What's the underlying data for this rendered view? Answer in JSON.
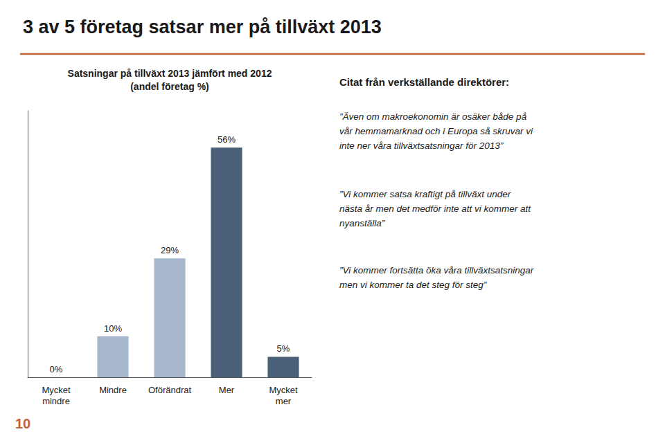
{
  "chart_data": {
    "type": "bar",
    "title": "3 av 5 företag satsar mer på tillväxt 2013",
    "subtitle": "Satsningar på tillväxt 2013 jämfört med 2012\n(andel företag %)",
    "categories": [
      "Mycket\nmindre",
      "Mindre",
      "Oförändrat",
      "Mer",
      "Mycket\nmer"
    ],
    "values": [
      0,
      10,
      29,
      56,
      5
    ],
    "value_labels": [
      "0%",
      "10%",
      "29%",
      "56%",
      "5%"
    ],
    "colors": [
      "#a8b8cc",
      "#a8b8cc",
      "#a8b8cc",
      "#4a5f78",
      "#4a5f78"
    ],
    "ylim": [
      0,
      65
    ],
    "grid": false,
    "data_labels": true,
    "tick_labels": "x",
    "annotations": [
      "Citat från verkställande direktörer:",
      "”Även om makroekonomin är osäker både på\nvår hemmamarknad och i Europa så skruvar vi\ninte ner våra tillväxtsatsningar för 2013”",
      "”Vi kommer satsa kraftigt på tillväxt under\nnästa år men det medför inte att vi kommer att\nnyanställa”",
      "”Vi kommer fortsätta öka våra tillväxtsatsningar\nmen vi kommer ta det steg för steg”",
      "10"
    ]
  }
}
